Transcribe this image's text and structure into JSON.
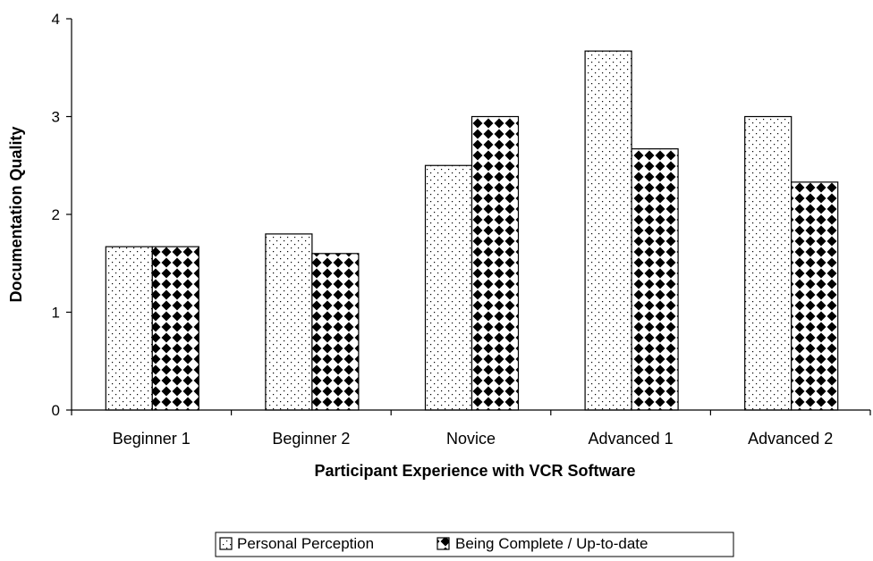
{
  "chart_data": {
    "type": "bar",
    "categories": [
      "Beginner 1",
      "Beginner 2",
      "Novice",
      "Advanced 1",
      "Advanced 2"
    ],
    "series": [
      {
        "name": "Personal Perception",
        "values": [
          1.67,
          1.8,
          2.5,
          3.67,
          3.0
        ],
        "pattern": "dots",
        "color": "#000000"
      },
      {
        "name": "Being Complete / Up-to-date",
        "values": [
          1.67,
          1.6,
          3.0,
          2.67,
          2.33
        ],
        "pattern": "diamonds",
        "color": "#000000"
      }
    ],
    "title": "",
    "xlabel": "Participant Experience with VCR Software",
    "ylabel": "Documentation Quality",
    "ylim": [
      0,
      4
    ],
    "yticks": [
      "0",
      "1",
      "2",
      "3",
      "4"
    ],
    "grid": false,
    "legend_position": "bottom"
  }
}
